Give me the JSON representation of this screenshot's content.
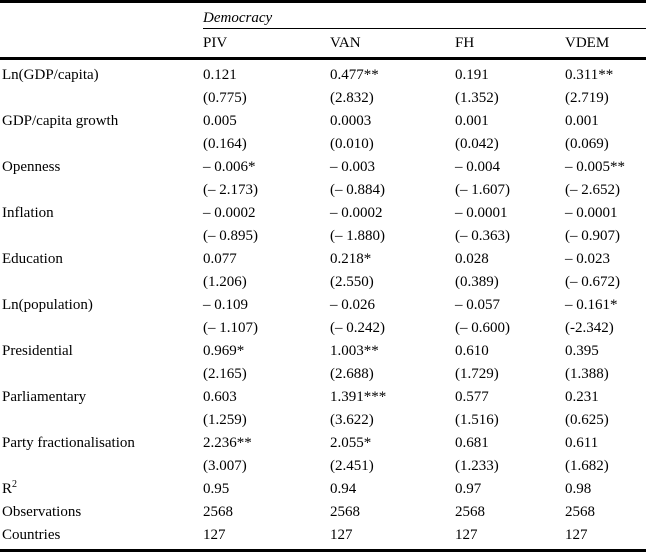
{
  "table": {
    "group_header": "Democracy",
    "columns": [
      "PIV",
      "VAN",
      "FH",
      "VDEM"
    ],
    "rows": [
      {
        "label": "Ln(GDP/capita)",
        "values": [
          "0.121",
          "0.477**",
          "0.191",
          "0.311**"
        ],
        "tstats": [
          "(0.775)",
          "(2.832)",
          "(1.352)",
          "(2.719)"
        ]
      },
      {
        "label": "GDP/capita growth",
        "values": [
          "0.005",
          "0.0003",
          "0.001",
          "0.001"
        ],
        "tstats": [
          "(0.164)",
          "(0.010)",
          "(0.042)",
          "(0.069)"
        ]
      },
      {
        "label": "Openness",
        "values": [
          "– 0.006*",
          "– 0.003",
          "– 0.004",
          "– 0.005**"
        ],
        "tstats": [
          "(– 2.173)",
          "(– 0.884)",
          "(– 1.607)",
          "(– 2.652)"
        ]
      },
      {
        "label": "Inflation",
        "values": [
          "– 0.0002",
          "– 0.0002",
          "– 0.0001",
          "– 0.0001"
        ],
        "tstats": [
          "(– 0.895)",
          "(– 1.880)",
          "(– 0.363)",
          "(– 0.907)"
        ]
      },
      {
        "label": "Education",
        "values": [
          "0.077",
          "0.218*",
          "0.028",
          "– 0.023"
        ],
        "tstats": [
          "(1.206)",
          "(2.550)",
          "(0.389)",
          "(– 0.672)"
        ]
      },
      {
        "label": "Ln(population)",
        "values": [
          "– 0.109",
          "– 0.026",
          "– 0.057",
          "– 0.161*"
        ],
        "tstats": [
          "(– 1.107)",
          "(– 0.242)",
          "(– 0.600)",
          "(-2.342)"
        ]
      },
      {
        "label": "Presidential",
        "values": [
          "0.969*",
          "1.003**",
          "0.610",
          "0.395"
        ],
        "tstats": [
          "(2.165)",
          "(2.688)",
          "(1.729)",
          "(1.388)"
        ]
      },
      {
        "label": "Parliamentary",
        "values": [
          "0.603",
          "1.391***",
          "0.577",
          "0.231"
        ],
        "tstats": [
          "(1.259)",
          "(3.622)",
          "(1.516)",
          "(0.625)"
        ]
      },
      {
        "label": "Party fractionalisation",
        "values": [
          "2.236**",
          "2.055*",
          "0.681",
          "0.611"
        ],
        "tstats": [
          "(3.007)",
          "(2.451)",
          "(1.233)",
          "(1.682)"
        ]
      }
    ],
    "summary": [
      {
        "label_base": "R",
        "label_sup": "2",
        "values": [
          "0.95",
          "0.94",
          "0.97",
          "0.98"
        ]
      },
      {
        "label": "Observations",
        "values": [
          "2568",
          "2568",
          "2568",
          "2568"
        ]
      },
      {
        "label": "Countries",
        "values": [
          "127",
          "127",
          "127",
          "127"
        ]
      }
    ]
  }
}
